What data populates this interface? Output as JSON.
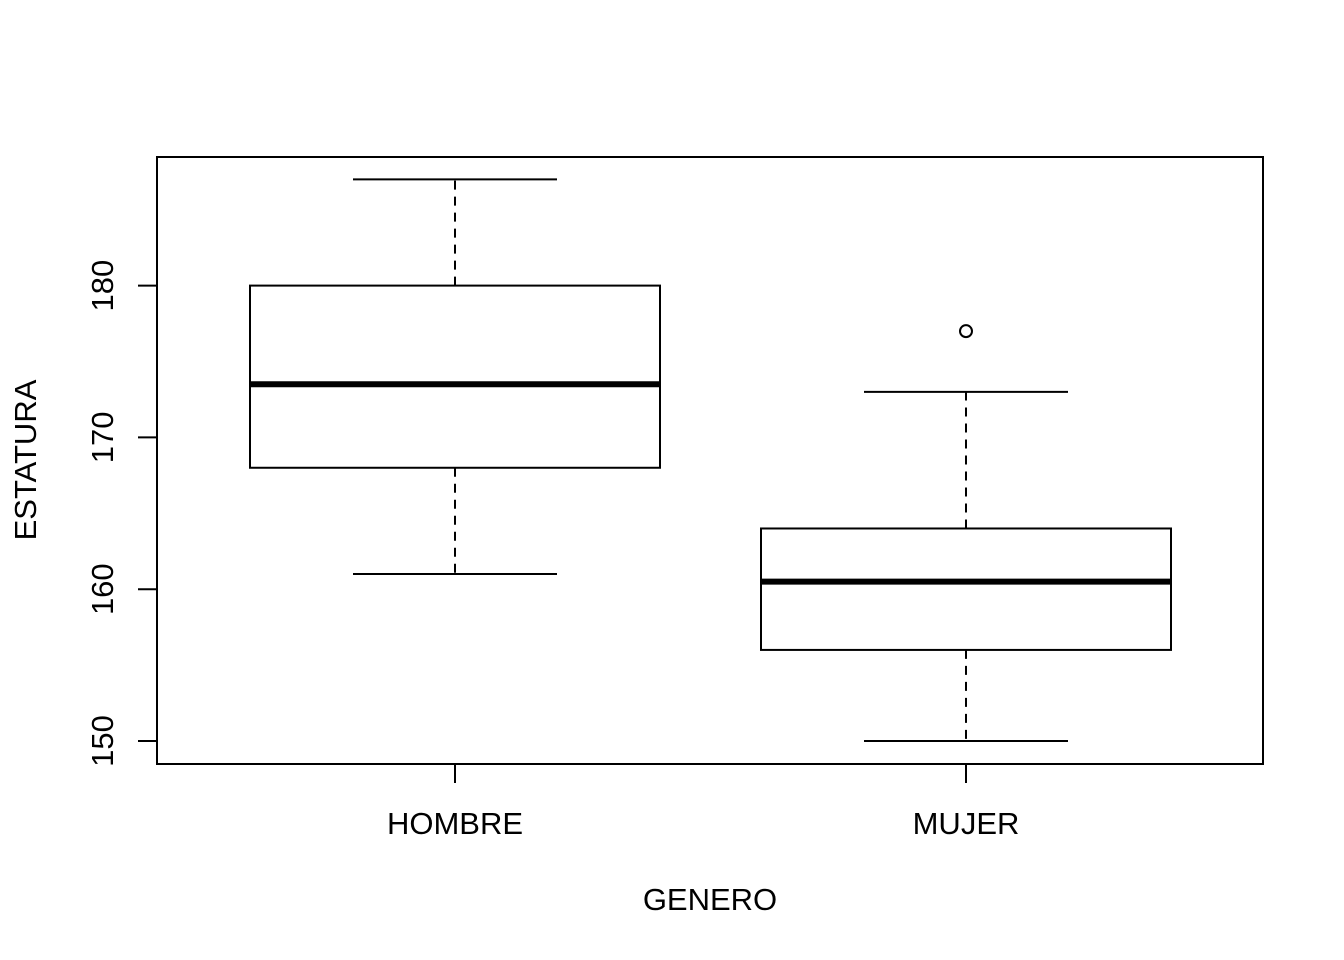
{
  "chart_data": {
    "type": "boxplot",
    "title": "",
    "xlabel": "GENERO",
    "ylabel": "ESTATURA",
    "categories": [
      "HOMBRE",
      "MUJER"
    ],
    "ylim": [
      148.5,
      188.5
    ],
    "yticks": [
      150,
      160,
      170,
      180
    ],
    "grid": false,
    "boxes": [
      {
        "category": "HOMBRE",
        "whisker_low": 161,
        "q1": 168,
        "median": 173.5,
        "q3": 180,
        "whisker_high": 187,
        "outliers": []
      },
      {
        "category": "MUJER",
        "whisker_low": 150,
        "q1": 156,
        "median": 160.5,
        "q3": 164,
        "whisker_high": 173,
        "outliers": [
          177
        ]
      }
    ]
  }
}
